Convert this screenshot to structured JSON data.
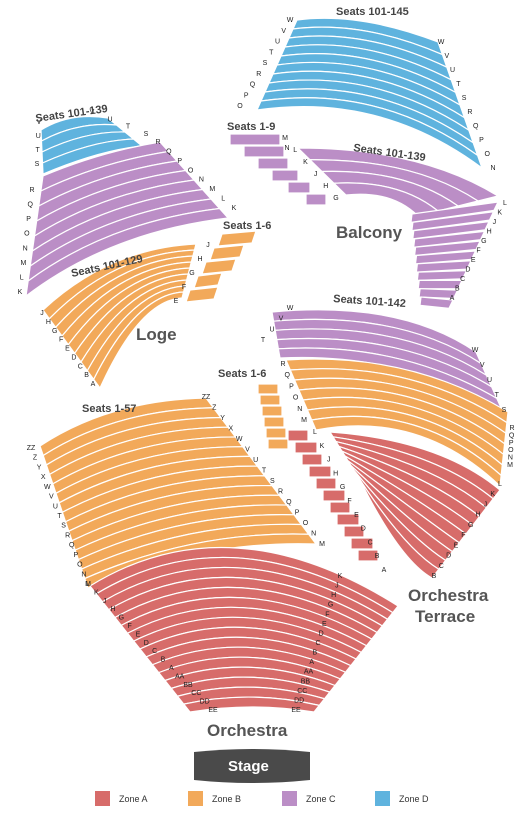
{
  "colors": {
    "zone_a": "#d76c6a",
    "zone_b": "#f2a95a",
    "zone_c": "#bb8ec6",
    "zone_d": "#5fb3de",
    "stage": "#4a4a4a",
    "stroke": "#ffffff"
  },
  "areas": {
    "balcony": "Balcony",
    "loge": "Loge",
    "orchestra": "Orchestra",
    "orchestra_terrace_1": "Orchestra",
    "orchestra_terrace_2": "Terrace"
  },
  "stage": "Stage",
  "legend": [
    {
      "label": "Zone A",
      "color_key": "zone_a"
    },
    {
      "label": "Zone B",
      "color_key": "zone_b"
    },
    {
      "label": "Zone C",
      "color_key": "zone_c"
    },
    {
      "label": "Zone D",
      "color_key": "zone_d"
    }
  ],
  "seat_labels": {
    "balcony_top": "Seats 101-145",
    "balcony_side": "Seats 1-9",
    "balcony_main": "Seats 101-139",
    "loge_top": "Seats 101-139",
    "loge_side": "Seats 1-6",
    "loge_main": "Seats 101-129",
    "orch_left": "Seats 1-57",
    "orch_side": "Seats 1-6",
    "orch_right": "Seats 101-142"
  },
  "rows": {
    "balcony_d_left": [
      "W",
      "V",
      "U",
      "T",
      "S",
      "R",
      "Q",
      "P",
      "O"
    ],
    "balcony_d_right": [
      "W",
      "V",
      "U",
      "T",
      "S",
      "R",
      "Q",
      "P",
      "O",
      "N"
    ],
    "balcony_side": [
      "M",
      "L",
      "K",
      "J",
      "H",
      "G"
    ],
    "balcony_main_top": [
      "N"
    ],
    "balcony_main_right": [
      "L",
      "K",
      "J",
      "H",
      "G",
      "F",
      "E",
      "D",
      "C",
      "B",
      "A"
    ],
    "loge_d_left": [
      "V",
      "U",
      "T",
      "S"
    ],
    "loge_d_right": [
      "V",
      "U",
      "T",
      "S"
    ],
    "loge_c_left": [
      "R",
      "Q",
      "P",
      "O",
      "N",
      "M",
      "L",
      "K"
    ],
    "loge_c_right": [
      "R",
      "Q",
      "P",
      "O",
      "N",
      "M",
      "L",
      "K"
    ],
    "loge_side": [
      "J",
      "H",
      "G",
      "F",
      "E"
    ],
    "loge_main_left": [
      "J",
      "H",
      "G",
      "F",
      "E",
      "D",
      "C",
      "B",
      "A"
    ],
    "orch_c_left": [
      "W",
      "V",
      "U",
      "T"
    ],
    "orch_c_right": [
      "W",
      "V",
      "U",
      "T",
      "S"
    ],
    "orch_side": [
      "R",
      "Q",
      "P",
      "O",
      "N",
      "M"
    ],
    "orch_b_right": [
      "R",
      "Q",
      "P",
      "O",
      "N",
      "M"
    ],
    "orch_terrace_inner": [
      "L",
      "K",
      "J",
      "H",
      "G",
      "F",
      "E",
      "D",
      "C",
      "B",
      "A"
    ],
    "orch_terrace_outer": [
      "L",
      "K",
      "J",
      "H",
      "G",
      "F",
      "E",
      "D",
      "C",
      "B"
    ],
    "orch_left_outer": [
      "ZZ",
      "Z",
      "Y",
      "X",
      "W",
      "V",
      "U",
      "T",
      "S",
      "R",
      "Q",
      "P",
      "O",
      "N",
      "M"
    ],
    "orch_left_inner": [
      "ZZ",
      "Z",
      "Y",
      "X",
      "W",
      "V",
      "U",
      "T",
      "S",
      "R",
      "Q",
      "P",
      "O",
      "N",
      "M"
    ],
    "orch_a_left": [
      "L",
      "K",
      "J",
      "H",
      "G",
      "F",
      "E",
      "D",
      "C",
      "B",
      "A",
      "AA",
      "BB",
      "CC",
      "DD",
      "EE"
    ],
    "orch_a_right": [
      "K",
      "J",
      "H",
      "G",
      "F",
      "E",
      "D",
      "C",
      "B",
      "A",
      "AA",
      "BB",
      "CC",
      "DD",
      "EE"
    ]
  }
}
